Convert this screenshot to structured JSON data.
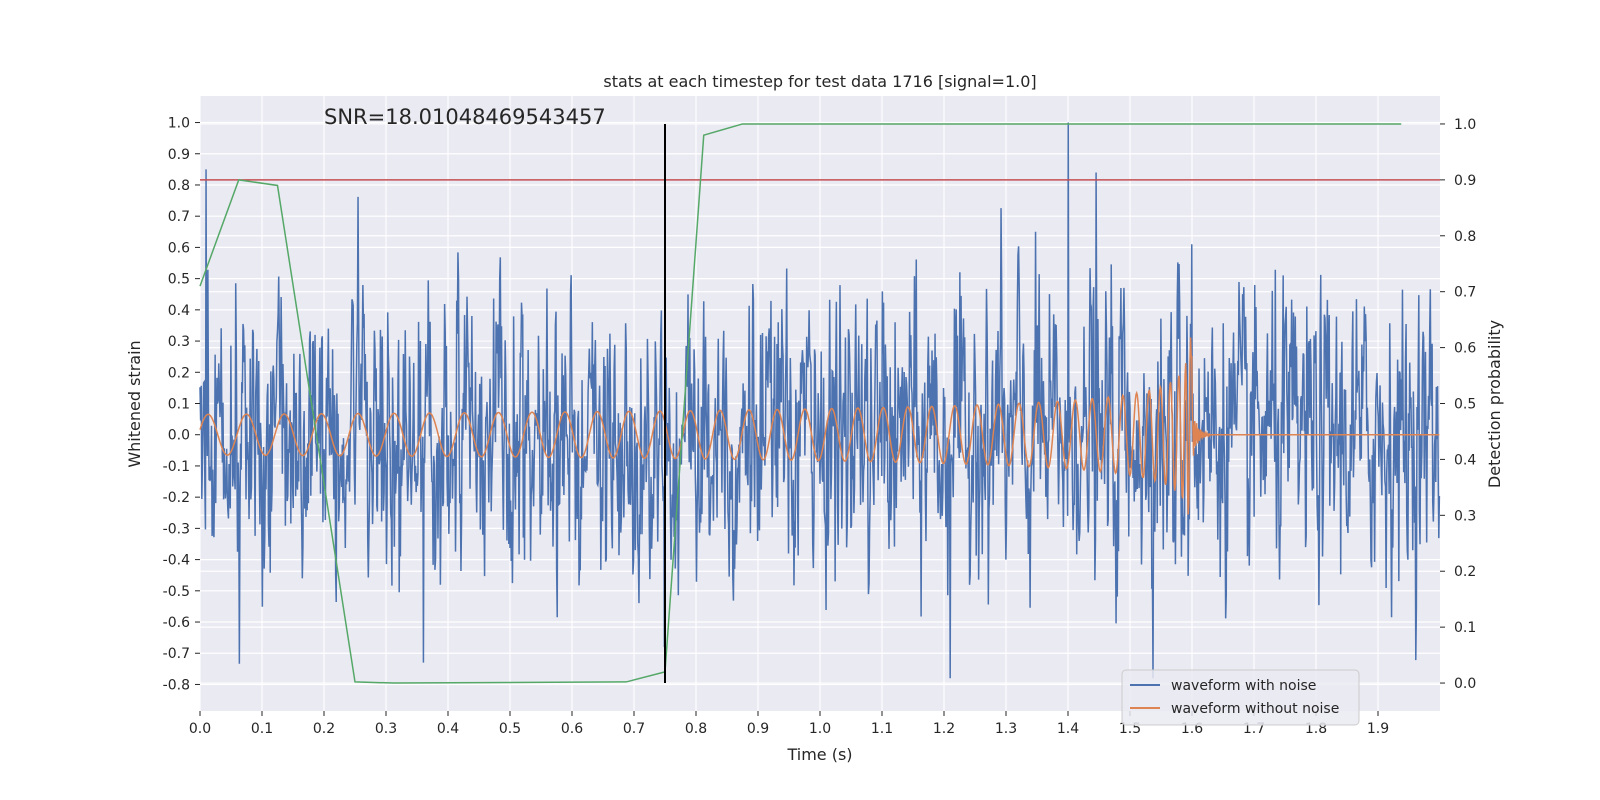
{
  "chart_data": {
    "type": "line",
    "title": "stats at each timestep for test data 1716 [signal=1.0]",
    "annotation": "SNR=18.01048469543457",
    "xlabel": "Time (s)",
    "ylabel": "Whitened strain",
    "y2label": "Detection probability",
    "xlim": [
      0.0,
      2.0
    ],
    "ylim": [
      -0.885,
      1.085
    ],
    "y2lim": [
      -0.05,
      1.05
    ],
    "xticks": [
      "0.0",
      "0.1",
      "0.2",
      "0.3",
      "0.4",
      "0.5",
      "0.6",
      "0.7",
      "0.8",
      "0.9",
      "1.0",
      "1.1",
      "1.2",
      "1.3",
      "1.4",
      "1.5",
      "1.6",
      "1.7",
      "1.8",
      "1.9"
    ],
    "yticks": [
      "1.0",
      "0.9",
      "0.8",
      "0.7",
      "0.6",
      "0.5",
      "0.4",
      "0.3",
      "0.2",
      "0.1",
      "0.0",
      "-0.1",
      "-0.2",
      "-0.3",
      "-0.4",
      "-0.5",
      "-0.6",
      "-0.7",
      "-0.8"
    ],
    "y2ticks": [
      "1.0",
      "0.9",
      "0.8",
      "0.7",
      "0.6",
      "0.5",
      "0.4",
      "0.3",
      "0.2",
      "0.1",
      "0.0"
    ],
    "grid": true,
    "legend_placement": "lower-right",
    "colors": {
      "noisy": "#4c72b0",
      "clean": "#dd8452",
      "probability": "#55a868",
      "threshold": "#c44e52",
      "marker": "#000000",
      "background": "#eaeaf2",
      "grid": "#ffffff"
    },
    "threshold": {
      "axis": "right",
      "value": 0.9
    },
    "marker_line": {
      "x": 0.75,
      "y2_range": [
        0.0,
        1.0
      ]
    },
    "series": [
      {
        "name": "waveform with noise",
        "axis": "left",
        "kind": "noise",
        "x_range": [
          0.0,
          2.0
        ],
        "sample_count": 2048,
        "amplitude_range": [
          -0.78,
          1.0
        ],
        "notable_peaks": [
          {
            "x": 0.01,
            "y": 0.85
          },
          {
            "x": 0.36,
            "y": -0.73
          },
          {
            "x": 1.21,
            "y": -0.78
          },
          {
            "x": 1.4,
            "y": 1.0
          },
          {
            "x": 1.445,
            "y": 0.84
          },
          {
            "x": 1.6,
            "y": 0.61
          }
        ]
      },
      {
        "name": "waveform without noise",
        "axis": "left",
        "kind": "chirp",
        "x_range": [
          0.0,
          2.0
        ],
        "merger_time": 1.6,
        "amplitude_start": 0.065,
        "amplitude_peak": 0.61,
        "frequency_start_hz": 16
      },
      {
        "name": "",
        "axis": "right",
        "kind": "probability",
        "x": [
          0.0,
          0.0625,
          0.125,
          0.25,
          0.3125,
          0.6875,
          0.75,
          0.8125,
          0.875,
          1.9375
        ],
        "y": [
          0.71,
          0.9,
          0.89,
          0.002,
          0.0,
          0.002,
          0.02,
          0.98,
          1.0,
          1.0
        ]
      }
    ]
  }
}
